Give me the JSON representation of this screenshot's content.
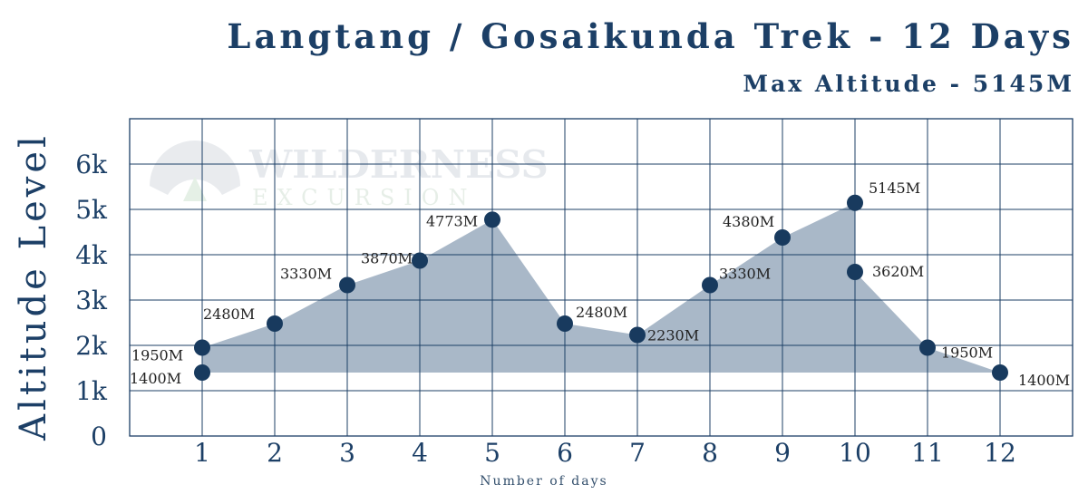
{
  "chart_data": {
    "type": "area",
    "title": "Langtang / Gosaikunda Trek - 12 Days",
    "subtitle": "Max Altitude - 5145M",
    "xlabel": "Number of days",
    "ylabel": "Altitude Level",
    "watermark": "WILDERNESS EXCURSION",
    "x_ticks": [
      "1",
      "2",
      "3",
      "4",
      "5",
      "6",
      "7",
      "8",
      "9",
      "10",
      "11",
      "12"
    ],
    "y_ticks": [
      "0",
      "1k",
      "2k",
      "3k",
      "4k",
      "5k",
      "6k"
    ],
    "xlim": [
      0,
      13
    ],
    "ylim": [
      0,
      6000
    ],
    "grid": true,
    "colors": {
      "title": "#1c3f66",
      "fill": "#a9b8c8",
      "grid": "#1c3f66",
      "point": "#183a5e",
      "text": "#222222"
    },
    "series": [
      {
        "points": [
          {
            "x": 1,
            "y": 1400,
            "label": "1400M"
          },
          {
            "x": 1,
            "y": 1950,
            "label": "1950M"
          },
          {
            "x": 2,
            "y": 2480,
            "label": "2480M"
          },
          {
            "x": 3,
            "y": 3330,
            "label": "3330M"
          },
          {
            "x": 4,
            "y": 3870,
            "label": "3870M"
          },
          {
            "x": 5,
            "y": 4773,
            "label": "4773M"
          },
          {
            "x": 6,
            "y": 2480,
            "label": "2480M"
          },
          {
            "x": 7,
            "y": 2230,
            "label": "2230M"
          },
          {
            "x": 8,
            "y": 3330,
            "label": "3330M"
          },
          {
            "x": 9,
            "y": 4380,
            "label": "4380M"
          },
          {
            "x": 10,
            "y": 5145,
            "label": "5145M"
          },
          {
            "x": 10,
            "y": 3620,
            "label": "3620M"
          },
          {
            "x": 11,
            "y": 1950,
            "label": "1950M"
          },
          {
            "x": 12,
            "y": 1400,
            "label": "1400M"
          }
        ]
      }
    ]
  }
}
